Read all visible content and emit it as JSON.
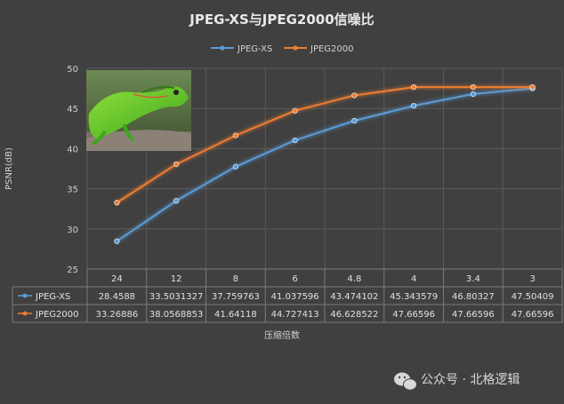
{
  "chart_data": {
    "type": "line",
    "title": "JPEG-XS与JPEG2000信噪比",
    "xlabel": "压缩倍数",
    "ylabel": "PSNR(dB)",
    "categories": [
      "24",
      "12",
      "8",
      "6",
      "4.8",
      "4",
      "3.4",
      "3"
    ],
    "ylim": [
      25,
      50
    ],
    "yticks": [
      25,
      30,
      35,
      40,
      45,
      50
    ],
    "grid": true,
    "legend_position": "top",
    "series": [
      {
        "name": "JPEG-XS",
        "color": "#5b9bd5",
        "values": [
          28.4588,
          33.5031327,
          37.759763,
          41.037596,
          43.474102,
          45.343579,
          46.80327,
          47.50409
        ],
        "labels": [
          "28.4588",
          "33.5031327",
          "37.759763",
          "41.037596",
          "43.474102",
          "45.343579",
          "46.80327",
          "47.50409"
        ]
      },
      {
        "name": "JPEG2000",
        "color": "#ed7d31",
        "values": [
          33.26886,
          38.0568853,
          41.64118,
          44.727413,
          46.628522,
          47.66596,
          47.66596,
          47.66596
        ],
        "labels": [
          "33.26886",
          "38.0568853",
          "41.64118",
          "44.727413",
          "46.628522",
          "47.66596",
          "47.66596",
          "47.66596"
        ]
      }
    ],
    "data_table": true,
    "inset_image": "green-gecko-photo"
  },
  "watermark": {
    "icon": "wechat-icon",
    "text": "公众号 · 北格逻辑"
  }
}
